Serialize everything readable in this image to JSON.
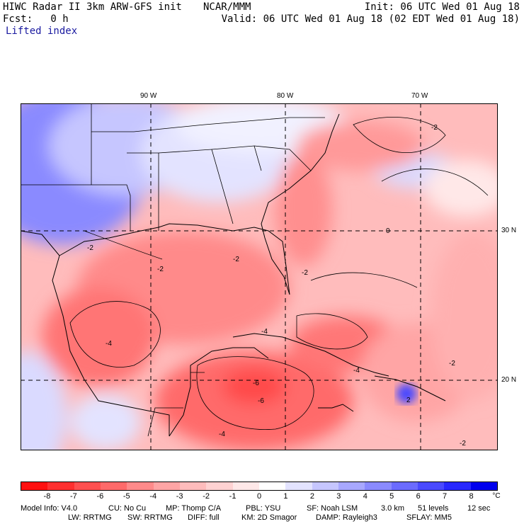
{
  "header": {
    "left1": "HIWC Radar II 3km ARW-GFS init",
    "center1": "NCAR/MMM",
    "right1": "Init: 06 UTC Wed 01 Aug 18",
    "left2": "Fcst:   0 h",
    "right2": "Valid: 06 UTC Wed 01 Aug 18 (02 EDT Wed 01 Aug 18)",
    "field": "Lifted index"
  },
  "map": {
    "lon_labels": [
      "90 W",
      "80 W",
      "70 W"
    ],
    "lat_labels": [
      "30 N",
      "20 N"
    ],
    "contour_labels": [
      "-2",
      "-2",
      "-2",
      "-2",
      "-2",
      "-4",
      "-4",
      "-4",
      "-6",
      "-6",
      "-4",
      "-2",
      "-2",
      "0",
      "2"
    ]
  },
  "colorbar": {
    "labels": [
      "-8",
      "-7",
      "-6",
      "-5",
      "-4",
      "-3",
      "-2",
      "-1",
      "0",
      "1",
      "2",
      "3",
      "4",
      "5",
      "6",
      "7",
      "8"
    ],
    "unit": "°C",
    "colors": [
      "#ff1010",
      "#ff3030",
      "#ff5050",
      "#ff6a6a",
      "#ff8a8a",
      "#ffa5a5",
      "#ffbcbc",
      "#ffd2d2",
      "#ffe8e8",
      "#ffffff",
      "#e3e3ff",
      "#c6c6ff",
      "#a8a8ff",
      "#8a8aff",
      "#6b6bff",
      "#4a4aff",
      "#2828ff",
      "#0000ee"
    ]
  },
  "footer": {
    "line1": {
      "model": "Model Info: V4.0",
      "cu": "CU: No Cu",
      "mp": "MP: Thomp C/A",
      "pbl": "PBL: YSU",
      "sf": "SF: Noah LSM",
      "res": "3.0 km",
      "levels": "51 levels",
      "dt": "12 sec"
    },
    "line2": {
      "lw": "LW: RRTMG",
      "sw": "SW: RRTMG",
      "diff": "DIFF: full",
      "km": "KM: 2D Smagor",
      "damp": "DAMP: Rayleigh3",
      "sflay": "SFLAY: MM5"
    }
  }
}
